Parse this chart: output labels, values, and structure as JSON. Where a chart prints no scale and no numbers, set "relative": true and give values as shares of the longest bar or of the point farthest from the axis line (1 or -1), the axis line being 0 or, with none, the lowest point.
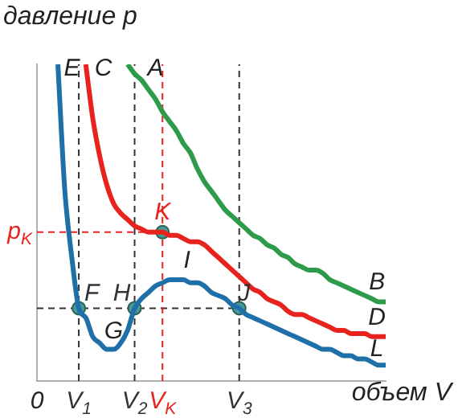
{
  "chart_data": {
    "type": "line",
    "relative": true,
    "xlabel": "объем V",
    "ylabel": "давление p",
    "categories": [
      "0",
      null,
      null,
      null,
      null,
      null,
      "V$_{1}$",
      null,
      null,
      null,
      null,
      null,
      null,
      null,
      "V$_{2}$",
      null,
      null,
      null,
      "V$_{K}$",
      null,
      null,
      null,
      null,
      null,
      null,
      null,
      null,
      null,
      null,
      "V$_{3}$",
      null,
      null,
      null,
      null,
      null,
      null,
      null,
      null,
      null,
      null,
      null,
      null,
      null,
      null,
      null,
      null,
      null,
      null,
      null,
      null,
      null
    ],
    "grid": false,
    "legend": false,
    "line_style": "solid",
    "series": [
      {
        "color": "#1f6fa8",
        "values": [
          null,
          null,
          null,
          1.0,
          0.6,
          0.39,
          0.23,
          0.2,
          0.14,
          0.12,
          0.1,
          0.1,
          0.12,
          0.16,
          0.23,
          0.26,
          0.28,
          0.3,
          0.31,
          0.32,
          0.32,
          0.32,
          0.31,
          0.31,
          0.3,
          0.28,
          0.27,
          0.26,
          0.24,
          0.23,
          0.21,
          0.2,
          0.19,
          0.18,
          0.17,
          0.16,
          0.15,
          0.14,
          0.13,
          0.12,
          0.11,
          0.1,
          0.1,
          0.09,
          0.08,
          0.08,
          0.07,
          0.07,
          0.06,
          0.05,
          0.05
        ]
      },
      {
        "color": "#e8231e",
        "values": [
          null,
          null,
          null,
          null,
          null,
          null,
          null,
          1.0,
          0.83,
          0.71,
          0.62,
          0.56,
          0.53,
          0.51,
          0.49,
          0.48,
          0.47,
          0.47,
          0.47,
          0.46,
          0.46,
          0.45,
          0.44,
          0.44,
          0.43,
          0.41,
          0.39,
          0.37,
          0.35,
          0.33,
          0.31,
          0.29,
          0.28,
          0.26,
          0.25,
          0.24,
          0.22,
          0.21,
          0.21,
          0.2,
          0.19,
          0.18,
          0.17,
          0.16,
          0.16,
          0.15,
          0.15,
          0.15,
          0.14,
          0.14,
          0.14
        ]
      },
      {
        "color": "#2e9b4a",
        "values": [
          null,
          null,
          null,
          null,
          null,
          null,
          null,
          null,
          null,
          null,
          null,
          null,
          null,
          1.0,
          0.97,
          0.95,
          0.92,
          0.89,
          0.85,
          0.82,
          0.79,
          0.75,
          0.72,
          0.67,
          0.63,
          0.6,
          0.57,
          0.54,
          0.52,
          0.5,
          0.48,
          0.46,
          0.45,
          0.43,
          0.42,
          0.4,
          0.39,
          0.37,
          0.36,
          0.35,
          0.35,
          0.34,
          0.32,
          0.31,
          0.3,
          0.29,
          0.28,
          0.27,
          0.26,
          0.25,
          0.25
        ]
      },
      {
        "type": "scatter",
        "marker": "circle",
        "color": "#4a9a94",
        "x": [
          "V$_{1}$",
          "V$_{2}$",
          "V$_{3}$",
          "V$_{K}$"
        ],
        "values": [
          0.23,
          0.23,
          0.23,
          0.47
        ]
      }
    ],
    "ref_lines": [
      {
        "axis": "y",
        "value": 0.23,
        "label": null,
        "color": "#333333",
        "line_style": "dashed"
      },
      {
        "axis": "x",
        "value": "V$_{1}$",
        "label": null,
        "color": "#333333",
        "line_style": "dashed"
      },
      {
        "axis": "x",
        "value": "V$_{2}$",
        "label": null,
        "color": "#333333",
        "line_style": "dashed"
      },
      {
        "axis": "x",
        "value": "V$_{3}$",
        "label": null,
        "color": "#333333",
        "line_style": "dashed"
      },
      {
        "axis": "y",
        "value": 0.47,
        "label": "p$_{K}$",
        "color": "#e8231e",
        "line_style": "dashed"
      },
      {
        "axis": "x",
        "value": "V$_{K}$",
        "label": null,
        "color": "#e8231e",
        "line_style": "dashed"
      }
    ],
    "annotations": [
      "E",
      "C",
      "A",
      "B",
      "D",
      "L",
      "I",
      "G",
      {
        "text": "F",
        "x": "V$_{1}$",
        "y": 0.23
      },
      {
        "text": "H",
        "x": "V$_{2}$",
        "y": 0.23
      },
      {
        "text": "J",
        "x": "V$_{3}$",
        "y": 0.23
      },
      {
        "text": "K",
        "x": "V$_{K}$",
        "y": 0.47
      }
    ]
  }
}
